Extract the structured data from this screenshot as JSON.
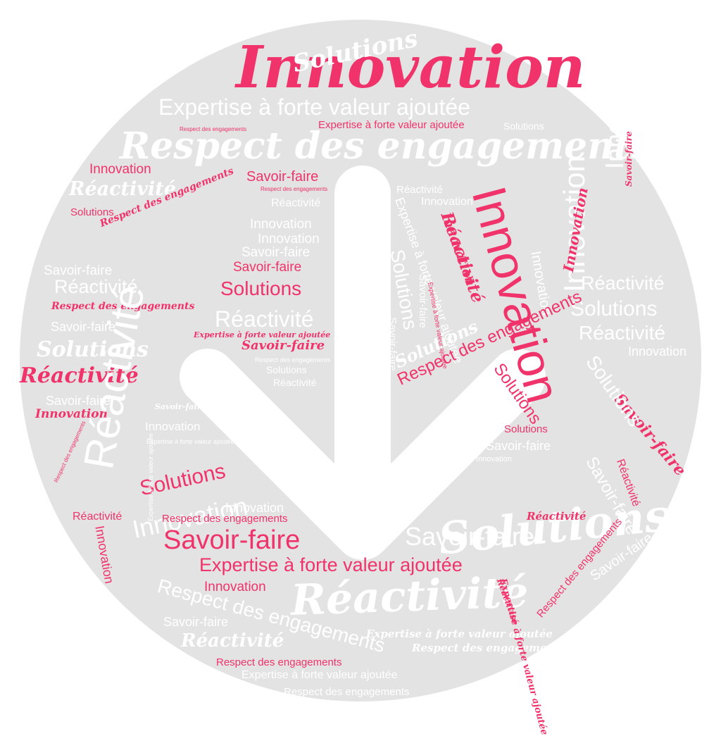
{
  "colors": {
    "background": "#ffffff",
    "disc": "#e3e3e3",
    "accent": "#f0336a",
    "light": "#ffffff"
  },
  "arrow": {
    "icon": "arrow-down-icon"
  },
  "words": [
    {
      "text": "Innovation",
      "color": "pink",
      "font": "script"
    },
    {
      "text": "Solutions",
      "color": "white",
      "font": "script"
    },
    {
      "text": "Expertise à forte valeur ajoutée",
      "color": "white",
      "font": "sans"
    },
    {
      "text": "Expertise à forte valeur ajoutée",
      "color": "pink",
      "font": "sans"
    },
    {
      "text": "Solutions",
      "color": "white",
      "font": "sans"
    },
    {
      "text": "Respect des engagements",
      "color": "pink",
      "font": "sans"
    },
    {
      "text": "Respect des engagements",
      "color": "white",
      "font": "script"
    },
    {
      "text": "Innovation",
      "color": "pink",
      "font": "sans"
    },
    {
      "text": "Savoir-faire",
      "color": "pink",
      "font": "sans"
    },
    {
      "text": "Réactivité",
      "color": "white",
      "font": "script"
    },
    {
      "text": "Respect des engagements",
      "color": "pink",
      "font": "sans"
    },
    {
      "text": "Réactivité",
      "color": "white",
      "font": "sans"
    },
    {
      "text": "Solutions",
      "color": "pink",
      "font": "sans"
    },
    {
      "text": "Respect des engagements",
      "color": "pink",
      "font": "script"
    },
    {
      "text": "Réactivité",
      "color": "white",
      "font": "sans"
    },
    {
      "text": "Innovation",
      "color": "white",
      "font": "sans"
    },
    {
      "text": "Innovation",
      "color": "white",
      "font": "sans"
    },
    {
      "text": "Innovation",
      "color": "white",
      "font": "sans"
    },
    {
      "text": "Savoir-faire",
      "color": "white",
      "font": "sans"
    },
    {
      "text": "Savoir-faire",
      "color": "white",
      "font": "sans"
    },
    {
      "text": "Savoir-faire",
      "color": "pink",
      "font": "sans"
    },
    {
      "text": "Réactivité",
      "color": "white",
      "font": "sans"
    },
    {
      "text": "Solutions",
      "color": "pink",
      "font": "sans"
    },
    {
      "text": "Respect des engagements",
      "color": "pink",
      "font": "script"
    },
    {
      "text": "Réactivité",
      "color": "white",
      "font": "sans"
    },
    {
      "text": "Savoir-faire",
      "color": "white",
      "font": "sans"
    },
    {
      "text": "Expertise à forte valeur ajoutée",
      "color": "pink",
      "font": "script"
    },
    {
      "text": "Solutions",
      "color": "white",
      "font": "script"
    },
    {
      "text": "Savoir-faire",
      "color": "pink",
      "font": "script"
    },
    {
      "text": "Respect des engagements",
      "color": "white",
      "font": "sans"
    },
    {
      "text": "Solutions",
      "color": "white",
      "font": "sans"
    },
    {
      "text": "Réactivité",
      "color": "pink",
      "font": "script"
    },
    {
      "text": "Réactivité",
      "color": "white",
      "font": "sans"
    },
    {
      "text": "Savoir-faire",
      "color": "white",
      "font": "sans"
    },
    {
      "text": "Savoir-faire",
      "color": "white",
      "font": "script"
    },
    {
      "text": "Innovation",
      "color": "pink",
      "font": "script"
    },
    {
      "text": "Innovation",
      "color": "white",
      "font": "sans"
    },
    {
      "text": "Expertise à forte valeur ajoutée",
      "color": "white",
      "font": "sans"
    },
    {
      "text": "Respect des engagements",
      "color": "pink",
      "font": "sans"
    },
    {
      "text": "Solutions",
      "color": "pink",
      "font": "sans"
    },
    {
      "text": "Innovation",
      "color": "white",
      "font": "sans"
    },
    {
      "text": "Réactivité",
      "color": "pink",
      "font": "sans"
    },
    {
      "text": "Innovation",
      "color": "white",
      "font": "sans"
    },
    {
      "text": "Respect des engagements",
      "color": "pink",
      "font": "sans"
    },
    {
      "text": "Savoir-faire",
      "color": "pink",
      "font": "sans"
    },
    {
      "text": "Expertise à forte valeur ajoutée",
      "color": "pink",
      "font": "sans"
    },
    {
      "text": "Innovation",
      "color": "pink",
      "font": "sans"
    },
    {
      "text": "Réactivité",
      "color": "white",
      "font": "script"
    },
    {
      "text": "Savoir-faire",
      "color": "white",
      "font": "sans"
    },
    {
      "text": "Réactivité",
      "color": "white",
      "font": "script"
    },
    {
      "text": "Respect des engagements",
      "color": "pink",
      "font": "sans"
    },
    {
      "text": "Expertise à forte valeur ajoutée",
      "color": "white",
      "font": "sans"
    },
    {
      "text": "Respect des engagements",
      "color": "white",
      "font": "sans"
    },
    {
      "text": "Respect des engagements",
      "color": "white",
      "font": "sans"
    },
    {
      "text": "Expertise à forte valeur ajoutée",
      "color": "white",
      "font": "script"
    },
    {
      "text": "Respect des engagements",
      "color": "white",
      "font": "script"
    },
    {
      "text": "Savoir-faire",
      "color": "white",
      "font": "sans"
    },
    {
      "text": "Expertise à forte valeur ajoutée",
      "color": "pink",
      "font": "sans"
    },
    {
      "text": "Innovation",
      "color": "white",
      "font": "sans"
    },
    {
      "text": "Savoir-faire",
      "color": "white",
      "font": "sans"
    },
    {
      "text": "Innovation",
      "color": "pink",
      "font": "sans"
    },
    {
      "text": "Innovation",
      "color": "white",
      "font": "sans"
    },
    {
      "text": "Innovation",
      "color": "pink",
      "font": "script"
    },
    {
      "text": "Innovation",
      "color": "white",
      "font": "sans"
    },
    {
      "text": "Réactivité",
      "color": "white",
      "font": "sans"
    },
    {
      "text": "Solutions",
      "color": "white",
      "font": "sans"
    },
    {
      "text": "Réactivité",
      "color": "white",
      "font": "sans"
    },
    {
      "text": "Innovation",
      "color": "white",
      "font": "sans"
    },
    {
      "text": "Solutions",
      "color": "pink",
      "font": "sans"
    },
    {
      "text": "Savoir-faire",
      "color": "pink",
      "font": "script"
    },
    {
      "text": "Réactivité",
      "color": "pink",
      "font": "sans"
    },
    {
      "text": "Solutions",
      "color": "white",
      "font": "script"
    },
    {
      "text": "Réactivité",
      "color": "pink",
      "font": "script"
    },
    {
      "text": "Savoir-faire",
      "color": "white",
      "font": "sans"
    },
    {
      "text": "Respect des engagements",
      "color": "pink",
      "font": "sans"
    },
    {
      "text": "Savoir-faire",
      "color": "white",
      "font": "sans"
    },
    {
      "text": "Expertise à forte valeur ajoutée",
      "color": "white",
      "font": "sans"
    },
    {
      "text": "Savoir-faire",
      "color": "white",
      "font": "sans"
    },
    {
      "text": "Réactivité",
      "color": "pink",
      "font": "script"
    },
    {
      "text": "Solutions",
      "color": "pink",
      "font": "sans"
    },
    {
      "text": "Savoir-faire",
      "color": "white",
      "font": "sans"
    },
    {
      "text": "Solutions",
      "color": "white",
      "font": "sans"
    },
    {
      "text": "Expertise à forte valeur ajoutée",
      "color": "pink",
      "font": "sans"
    },
    {
      "text": "Respect des engagements",
      "color": "pink",
      "font": "sans"
    },
    {
      "text": "Solutions",
      "color": "white",
      "font": "script"
    },
    {
      "text": "Innovation",
      "color": "pink",
      "font": "sans"
    },
    {
      "text": "Réactivité",
      "color": "pink",
      "font": "sans"
    },
    {
      "text": "Solutions",
      "color": "white",
      "font": "sans"
    },
    {
      "text": "Réactivité",
      "color": "white",
      "font": "sans"
    },
    {
      "text": "Innovation",
      "color": "white",
      "font": "sans"
    },
    {
      "text": "Expertise à forte valeur ajoutée",
      "color": "white",
      "font": "sans"
    },
    {
      "text": "Expertise à forte valeur ajoutée",
      "color": "pink",
      "font": "script"
    },
    {
      "text": "Expertise à forte valeur ajoutée",
      "color": "pink",
      "font": "sans"
    },
    {
      "text": "Savoir-faire",
      "color": "pink",
      "font": "script"
    },
    {
      "text": "Innovation",
      "color": "pink",
      "font": "script"
    },
    {
      "text": "Réactivité",
      "color": "pink",
      "font": "script"
    },
    {
      "text": "Solutions",
      "color": "white",
      "font": "sans"
    },
    {
      "text": "Réactivité",
      "color": "white",
      "font": "sans"
    },
    {
      "text": "Innovation",
      "color": "pink",
      "font": "sans"
    }
  ]
}
